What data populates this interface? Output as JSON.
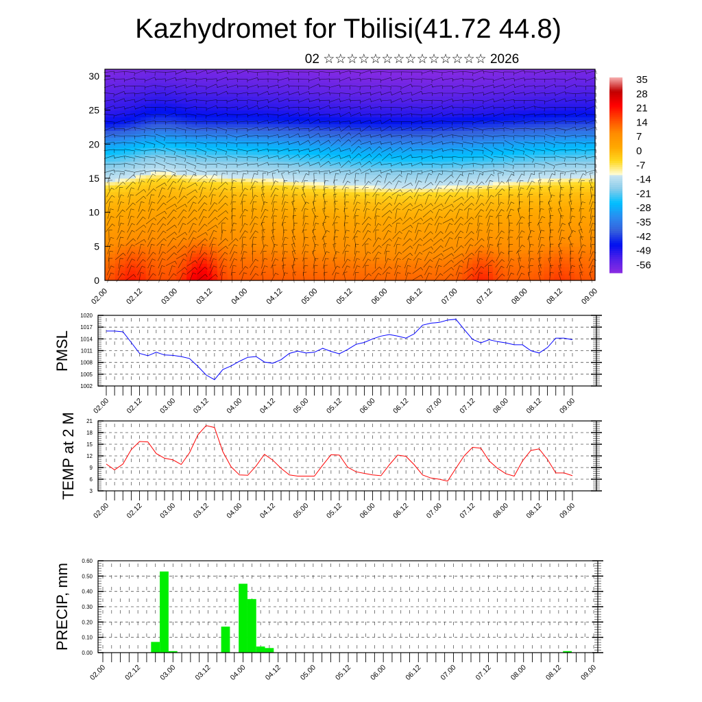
{
  "title": "Kazhydromet for Tbilisi(41.72 44.8)",
  "subtitle": "02 ☆☆☆☆☆☆☆☆☆☆☆☆☆☆ 2026",
  "chart_data": [
    {
      "type": "heatmap",
      "description_fields": "temperature cross-section with wind barbs",
      "ylim": [
        0,
        31
      ],
      "y_ticks": [
        "0",
        "5",
        "10",
        "15",
        "20",
        "25",
        "30"
      ],
      "y_tick_values": [
        0,
        5,
        10,
        15,
        20,
        25,
        30
      ],
      "x_labels": [
        "02.00",
        "02.12",
        "03.00",
        "03.12",
        "04.00",
        "04.12",
        "05.00",
        "05.12",
        "06.00",
        "06.12",
        "07.00",
        "07.12",
        "08.00",
        "08.12",
        "09.00"
      ],
      "time_range_hours": [
        0,
        168
      ],
      "profile_heights": [
        0,
        3,
        6,
        9,
        12,
        13.5,
        14.5,
        17,
        20,
        23,
        25,
        28,
        31
      ],
      "profile_temps": [
        12,
        9,
        5,
        1,
        -3,
        -7,
        -14,
        -22,
        -32,
        -45,
        -52,
        -58,
        -62
      ],
      "hotspots": [
        {
          "time_h": 9,
          "amp": 6
        },
        {
          "time_h": 33,
          "amp": 11
        },
        {
          "time_h": 129,
          "amp": 6
        },
        {
          "time_h": 156,
          "amp": 3
        }
      ],
      "colorbar": {
        "labels": [
          "35",
          "28",
          "21",
          "14",
          "7",
          "0",
          "-7",
          "-14",
          "-21",
          "-28",
          "-35",
          "-42",
          "-49",
          "-56"
        ],
        "stops": [
          {
            "v": 35,
            "c": "#f7b0b0"
          },
          {
            "v": 28,
            "c": "#c00000"
          },
          {
            "v": 21,
            "c": "#ff0000"
          },
          {
            "v": 14,
            "c": "#ff4a00"
          },
          {
            "v": 7,
            "c": "#ff8c00"
          },
          {
            "v": 0,
            "c": "#ffa800"
          },
          {
            "v": -7,
            "c": "#ffd820"
          },
          {
            "v": -13.5,
            "c": "#fffbd0"
          },
          {
            "v": -14,
            "c": "#cce6f2"
          },
          {
            "v": -21,
            "c": "#88ccea"
          },
          {
            "v": -28,
            "c": "#00bfff"
          },
          {
            "v": -35,
            "c": "#2a8cf0"
          },
          {
            "v": -42,
            "c": "#3560dc"
          },
          {
            "v": -49,
            "c": "#0010f0"
          },
          {
            "v": -56,
            "c": "#5020e8"
          },
          {
            "v": -63,
            "c": "#8a2be2"
          }
        ]
      }
    },
    {
      "type": "line",
      "ylabel": "PMSL",
      "ylim": [
        1002,
        1020
      ],
      "y_ticks": [
        "1002",
        "1005",
        "1008",
        "1011",
        "1014",
        "1017",
        "1020"
      ],
      "y_tick_values": [
        1002,
        1005,
        1008,
        1011,
        1014,
        1017,
        1020
      ],
      "x_labels": [
        "02.00",
        "02.12",
        "03.00",
        "03.12",
        "04.00",
        "04.12",
        "05.00",
        "05.12",
        "06.00",
        "06.12",
        "07.00",
        "07.12",
        "08.00",
        "08.12",
        "09.00"
      ],
      "step_hours": 3,
      "color": "#0000ff",
      "values": [
        1016,
        1016,
        1015.8,
        1013.1,
        1010.3,
        1009.7,
        1010.6,
        1009.9,
        1009.8,
        1009.5,
        1009.0,
        1007.0,
        1004.8,
        1003.6,
        1006.2,
        1007.1,
        1008.3,
        1009.3,
        1009.5,
        1008.1,
        1007.8,
        1008.7,
        1010.3,
        1010.9,
        1010.4,
        1010.6,
        1011.6,
        1010.8,
        1010.2,
        1011.3,
        1012.6,
        1013.1,
        1014.0,
        1014.7,
        1015.1,
        1014.7,
        1014.2,
        1015.3,
        1017.5,
        1018.0,
        1018.2,
        1018.8,
        1019.0,
        1016.4,
        1013.9,
        1013.0,
        1013.8,
        1013.3,
        1013.0,
        1012.5,
        1012.5,
        1011.0,
        1010.4,
        1011.8,
        1014.2,
        1014.2,
        1013.8
      ]
    },
    {
      "type": "line",
      "ylabel": "TEMP at 2 M",
      "ylim": [
        3,
        21
      ],
      "y_ticks": [
        "3",
        "6",
        "9",
        "12",
        "15",
        "18",
        "21"
      ],
      "y_tick_values": [
        3,
        6,
        9,
        12,
        15,
        18,
        21
      ],
      "x_labels": [
        "02.00",
        "02.12",
        "03.00",
        "03.12",
        "04.00",
        "04.12",
        "05.00",
        "05.12",
        "06.00",
        "06.12",
        "07.00",
        "07.12",
        "08.00",
        "08.12",
        "09.00"
      ],
      "step_hours": 3,
      "color": "#ff0000",
      "values": [
        9.9,
        8.4,
        9.9,
        13.6,
        15.7,
        15.6,
        12.6,
        11.4,
        11.0,
        9.8,
        12.8,
        17.4,
        19.8,
        19.3,
        13.1,
        9.2,
        7.1,
        7.0,
        9.4,
        12.4,
        10.9,
        8.8,
        7.1,
        6.8,
        6.8,
        6.8,
        9.6,
        12.3,
        12.2,
        9.1,
        7.9,
        7.5,
        7.1,
        6.9,
        9.7,
        12.2,
        11.9,
        9.7,
        7.1,
        6.3,
        6.0,
        5.5,
        8.8,
        12.0,
        14.2,
        14.0,
        10.7,
        8.8,
        7.4,
        6.8,
        10.7,
        13.4,
        13.8,
        11.1,
        7.6,
        7.6,
        6.9
      ]
    },
    {
      "type": "bar",
      "ylabel": "PRECIP, mm",
      "ylim": [
        0,
        0.6
      ],
      "y_ticks": [
        "0.00",
        "0.10",
        "0.20",
        "0.30",
        "0.40",
        "0.50",
        "0.60"
      ],
      "y_tick_values": [
        0,
        0.1,
        0.2,
        0.3,
        0.4,
        0.5,
        0.6
      ],
      "x_labels": [
        "02.00",
        "02.12",
        "03.00",
        "03.12",
        "04.00",
        "04.12",
        "05.00",
        "05.12",
        "06.00",
        "06.12",
        "07.00",
        "07.12",
        "08.00",
        "08.12",
        "09.00"
      ],
      "step_hours": 3,
      "color": "#00ee00",
      "values": [
        0,
        0,
        0,
        0,
        0,
        0,
        0.07,
        0.53,
        0.01,
        0,
        0,
        0,
        0,
        0,
        0.17,
        0,
        0.45,
        0.35,
        0.04,
        0.03,
        0,
        0,
        0,
        0,
        0,
        0,
        0,
        0,
        0,
        0,
        0,
        0,
        0,
        0,
        0,
        0,
        0,
        0,
        0,
        0,
        0,
        0,
        0,
        0,
        0,
        0,
        0,
        0,
        0,
        0,
        0,
        0,
        0,
        0.01,
        0,
        0,
        0
      ]
    }
  ]
}
